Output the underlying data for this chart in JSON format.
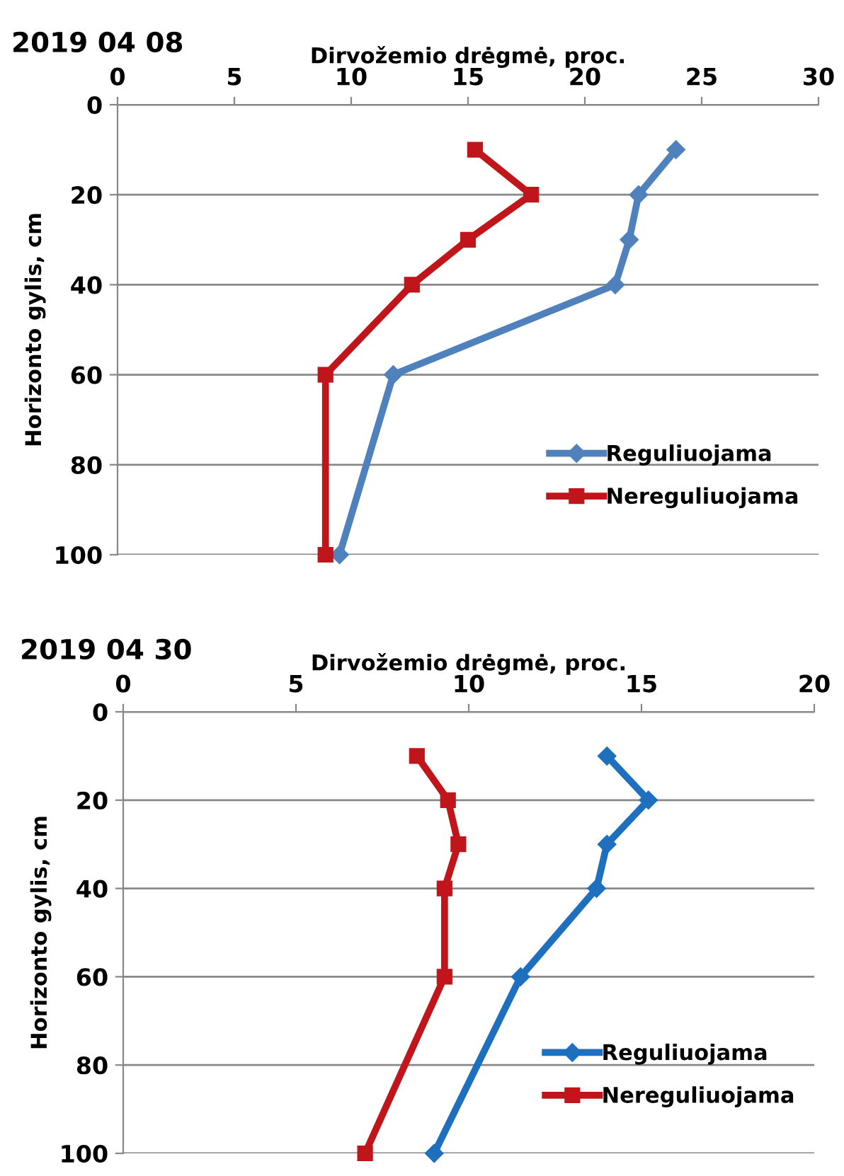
{
  "chart_data": [
    {
      "type": "line",
      "title": "2019 04 08",
      "xlabel": "Dirvožemio drėgmė, proc.",
      "ylabel": "Horizonto gylis, cm",
      "xlim": [
        0,
        30
      ],
      "xticks": [
        0,
        5,
        10,
        15,
        20,
        25,
        30
      ],
      "ylim": [
        100,
        0
      ],
      "yticks": [
        0,
        20,
        40,
        60,
        80,
        100
      ],
      "grid": "y",
      "legend": "bottom right",
      "series": [
        {
          "name": "Reguliuojama",
          "color": "#4f81bd",
          "marker": "diamond",
          "x": [
            23.9,
            22.3,
            21.9,
            21.3,
            11.8,
            9.5
          ],
          "values": [
            10,
            20,
            30,
            40,
            60,
            100
          ]
        },
        {
          "name": "Nereguliuojama",
          "color": "#c0161b",
          "marker": "square",
          "x": [
            15.3,
            17.7,
            15.0,
            12.6,
            8.9,
            8.9
          ],
          "values": [
            10,
            20,
            30,
            40,
            60,
            100
          ]
        }
      ]
    },
    {
      "type": "line",
      "title": "2019 04 30",
      "xlabel": "Dirvožemio drėgmė, proc.",
      "ylabel": "Horizonto gylis, cm",
      "xlim": [
        0,
        20
      ],
      "xticks": [
        0,
        5,
        10,
        15,
        20
      ],
      "ylim": [
        100,
        0
      ],
      "yticks": [
        0,
        20,
        40,
        60,
        80,
        100
      ],
      "grid": "y",
      "legend": "bottom right",
      "series": [
        {
          "name": "Reguliuojama",
          "color": "#1f6fbf",
          "marker": "diamond",
          "x": [
            14.0,
            15.2,
            14.0,
            13.7,
            11.5,
            9.0
          ],
          "values": [
            10,
            20,
            30,
            40,
            60,
            100
          ]
        },
        {
          "name": "Nereguliuojama",
          "color": "#c0161b",
          "marker": "square",
          "x": [
            8.5,
            9.4,
            9.7,
            9.3,
            9.3,
            7.0
          ],
          "values": [
            10,
            20,
            30,
            40,
            60,
            100
          ]
        }
      ]
    }
  ]
}
